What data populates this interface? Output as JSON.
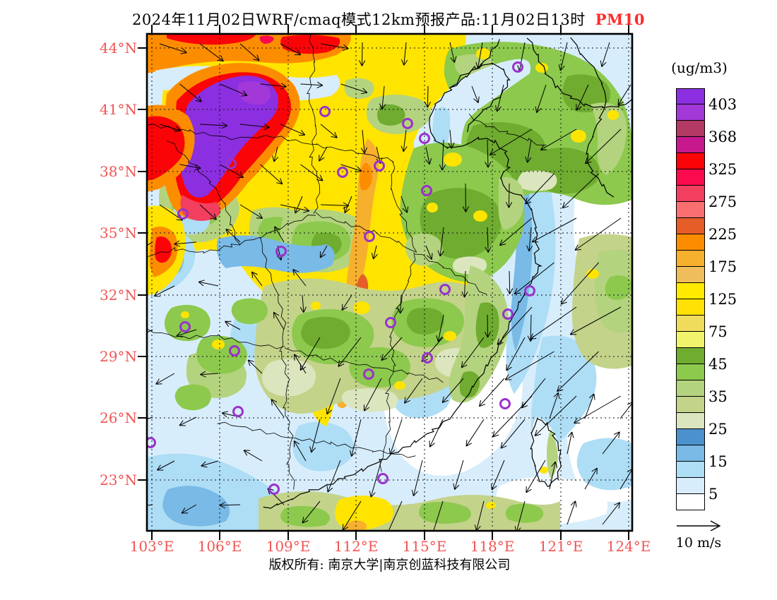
{
  "title": {
    "main": "2024年11月02日WRF/cmaq模式12km预报产品:11月02日13时",
    "pollutant": "PM10",
    "pollutant_color": "#FF2B2B"
  },
  "axes": {
    "label_color": "#F25454",
    "lat_labels": [
      "44°N",
      "41°N",
      "38°N",
      "35°N",
      "32°N",
      "29°N",
      "26°N",
      "23°N"
    ],
    "lon_labels": [
      "103°E",
      "106°E",
      "109°E",
      "112°E",
      "115°E",
      "118°E",
      "121°E",
      "124°E"
    ]
  },
  "colorbar": {
    "units": "(ug/m3)",
    "tick_labels": [
      "403",
      "368",
      "325",
      "275",
      "225",
      "175",
      "125",
      "75",
      "45",
      "35",
      "25",
      "15",
      "5"
    ],
    "colors": [
      "#8C2FE0",
      "#A238D8",
      "#B23A64",
      "#C7188E",
      "#FB0408",
      "#FB0A4E",
      "#F23F60",
      "#FA7070",
      "#E65D28",
      "#FD8D00",
      "#F7B02E",
      "#EFBE5A",
      "#FFEA00",
      "#FFE105",
      "#EFDC5C",
      "#F1F46A",
      "#6FAC30",
      "#8CC94D",
      "#B4D37E",
      "#C3D38A",
      "#DBE5BE",
      "#4B91CE",
      "#79BAE6",
      "#AEDDF6",
      "#D8EDFB",
      "#FFFFFF"
    ]
  },
  "wind_legend": {
    "label": "10 m/s"
  },
  "footer": {
    "copyright": "版权所有: 南京大学|南京创蓝科技有限公司"
  },
  "markers": {
    "color": "#9932CC"
  }
}
